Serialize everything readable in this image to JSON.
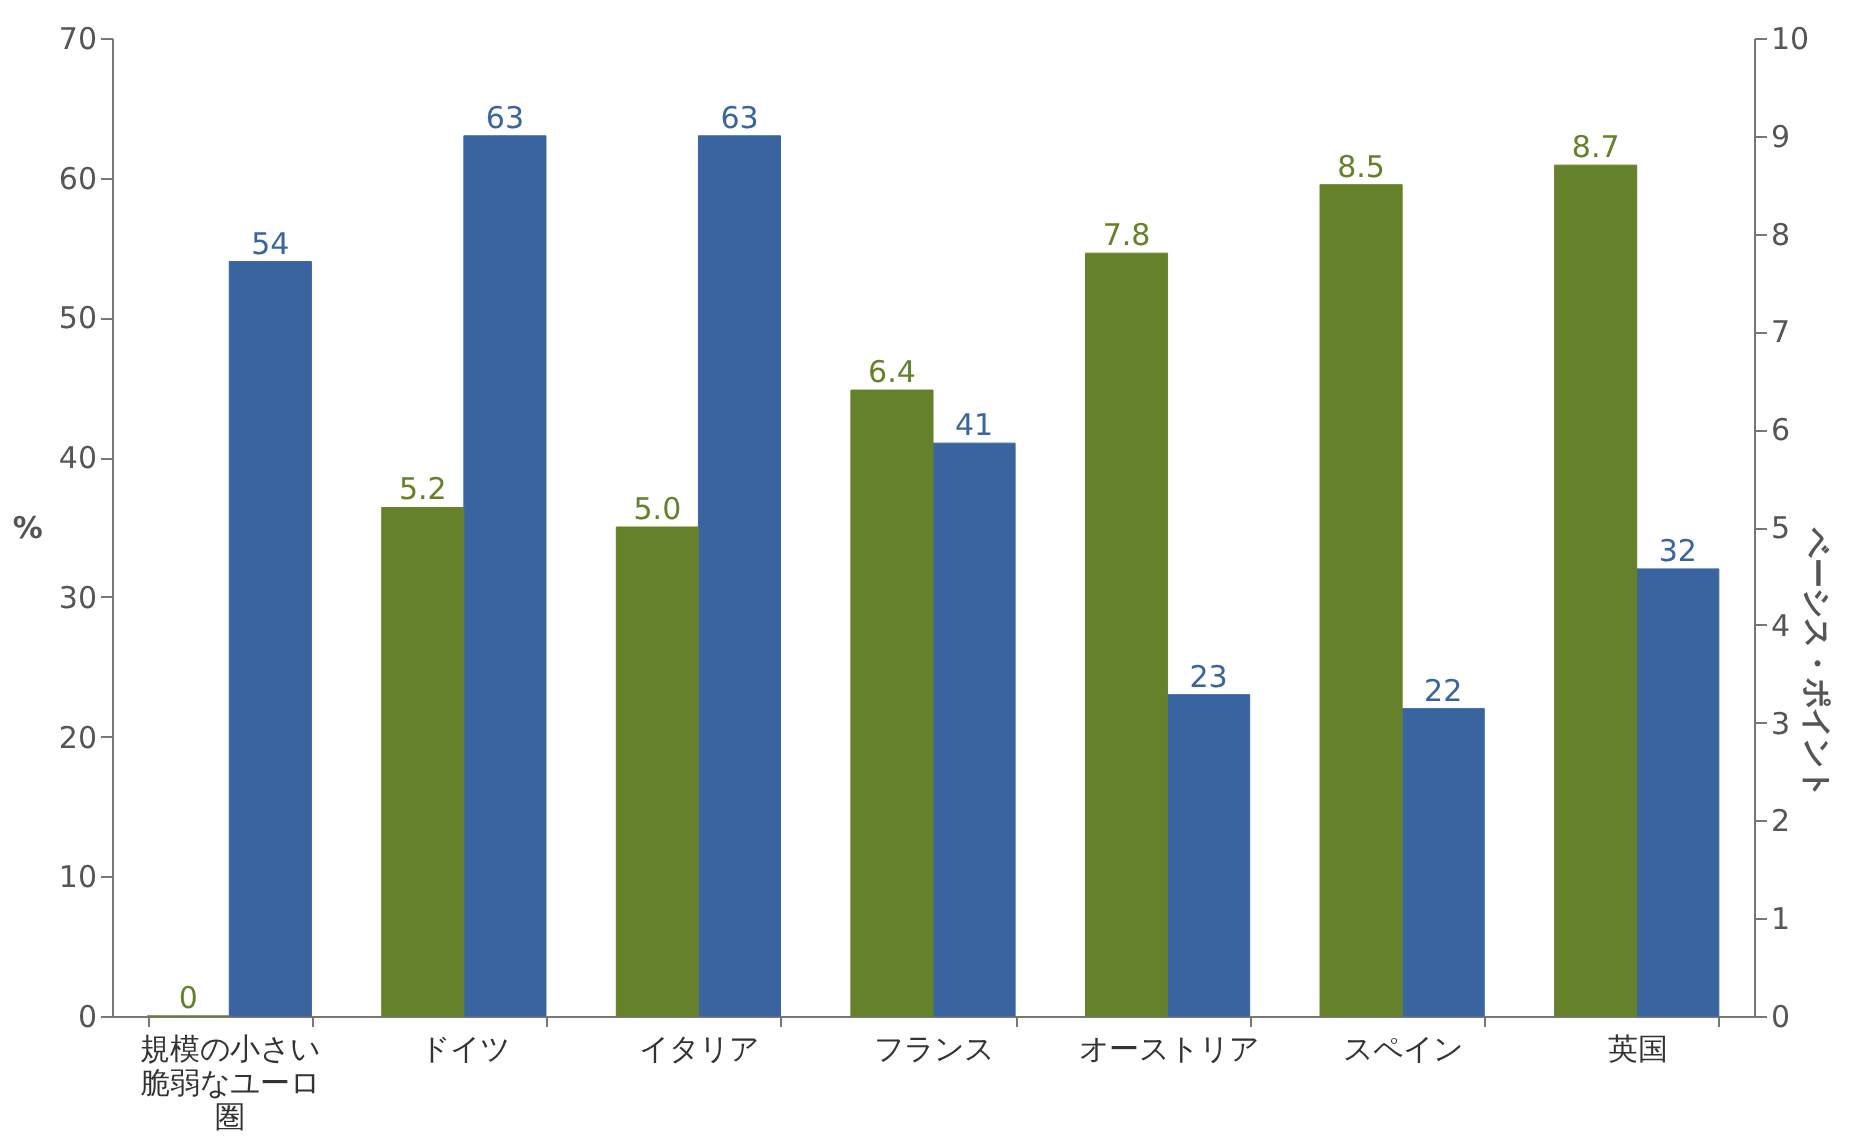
{
  "chart_data": {
    "type": "bar",
    "categories": [
      "規模の小さい脆弱なユーロ圏",
      "ドイツ",
      "イタリア",
      "フランス",
      "オーストリア",
      "スペイン",
      "英国"
    ],
    "series": [
      {
        "color": "#65812a",
        "axis": "y2",
        "values": [
          0,
          5.2,
          5.0,
          6.4,
          7.8,
          8.5,
          8.7
        ],
        "value_labels": [
          "0",
          "5.2",
          "5.0",
          "6.4",
          "7.8",
          "8.5",
          "8.7"
        ]
      },
      {
        "color": "#3a64a0",
        "values": [
          54,
          63,
          63,
          41,
          23,
          22,
          32
        ],
        "value_labels": [
          "54",
          "63",
          "63",
          "41",
          "23",
          "22",
          "32"
        ]
      }
    ],
    "ylabel": "%",
    "y2label": "ベーシス・ポイント",
    "ylim": [
      0,
      70
    ],
    "yticks": [
      0,
      10,
      20,
      30,
      40,
      50,
      60,
      70
    ],
    "y2lim": [
      0,
      10
    ],
    "y2ticks": [
      0,
      1,
      2,
      3,
      4,
      5,
      6,
      7,
      8,
      9,
      10
    ],
    "grid": false
  }
}
